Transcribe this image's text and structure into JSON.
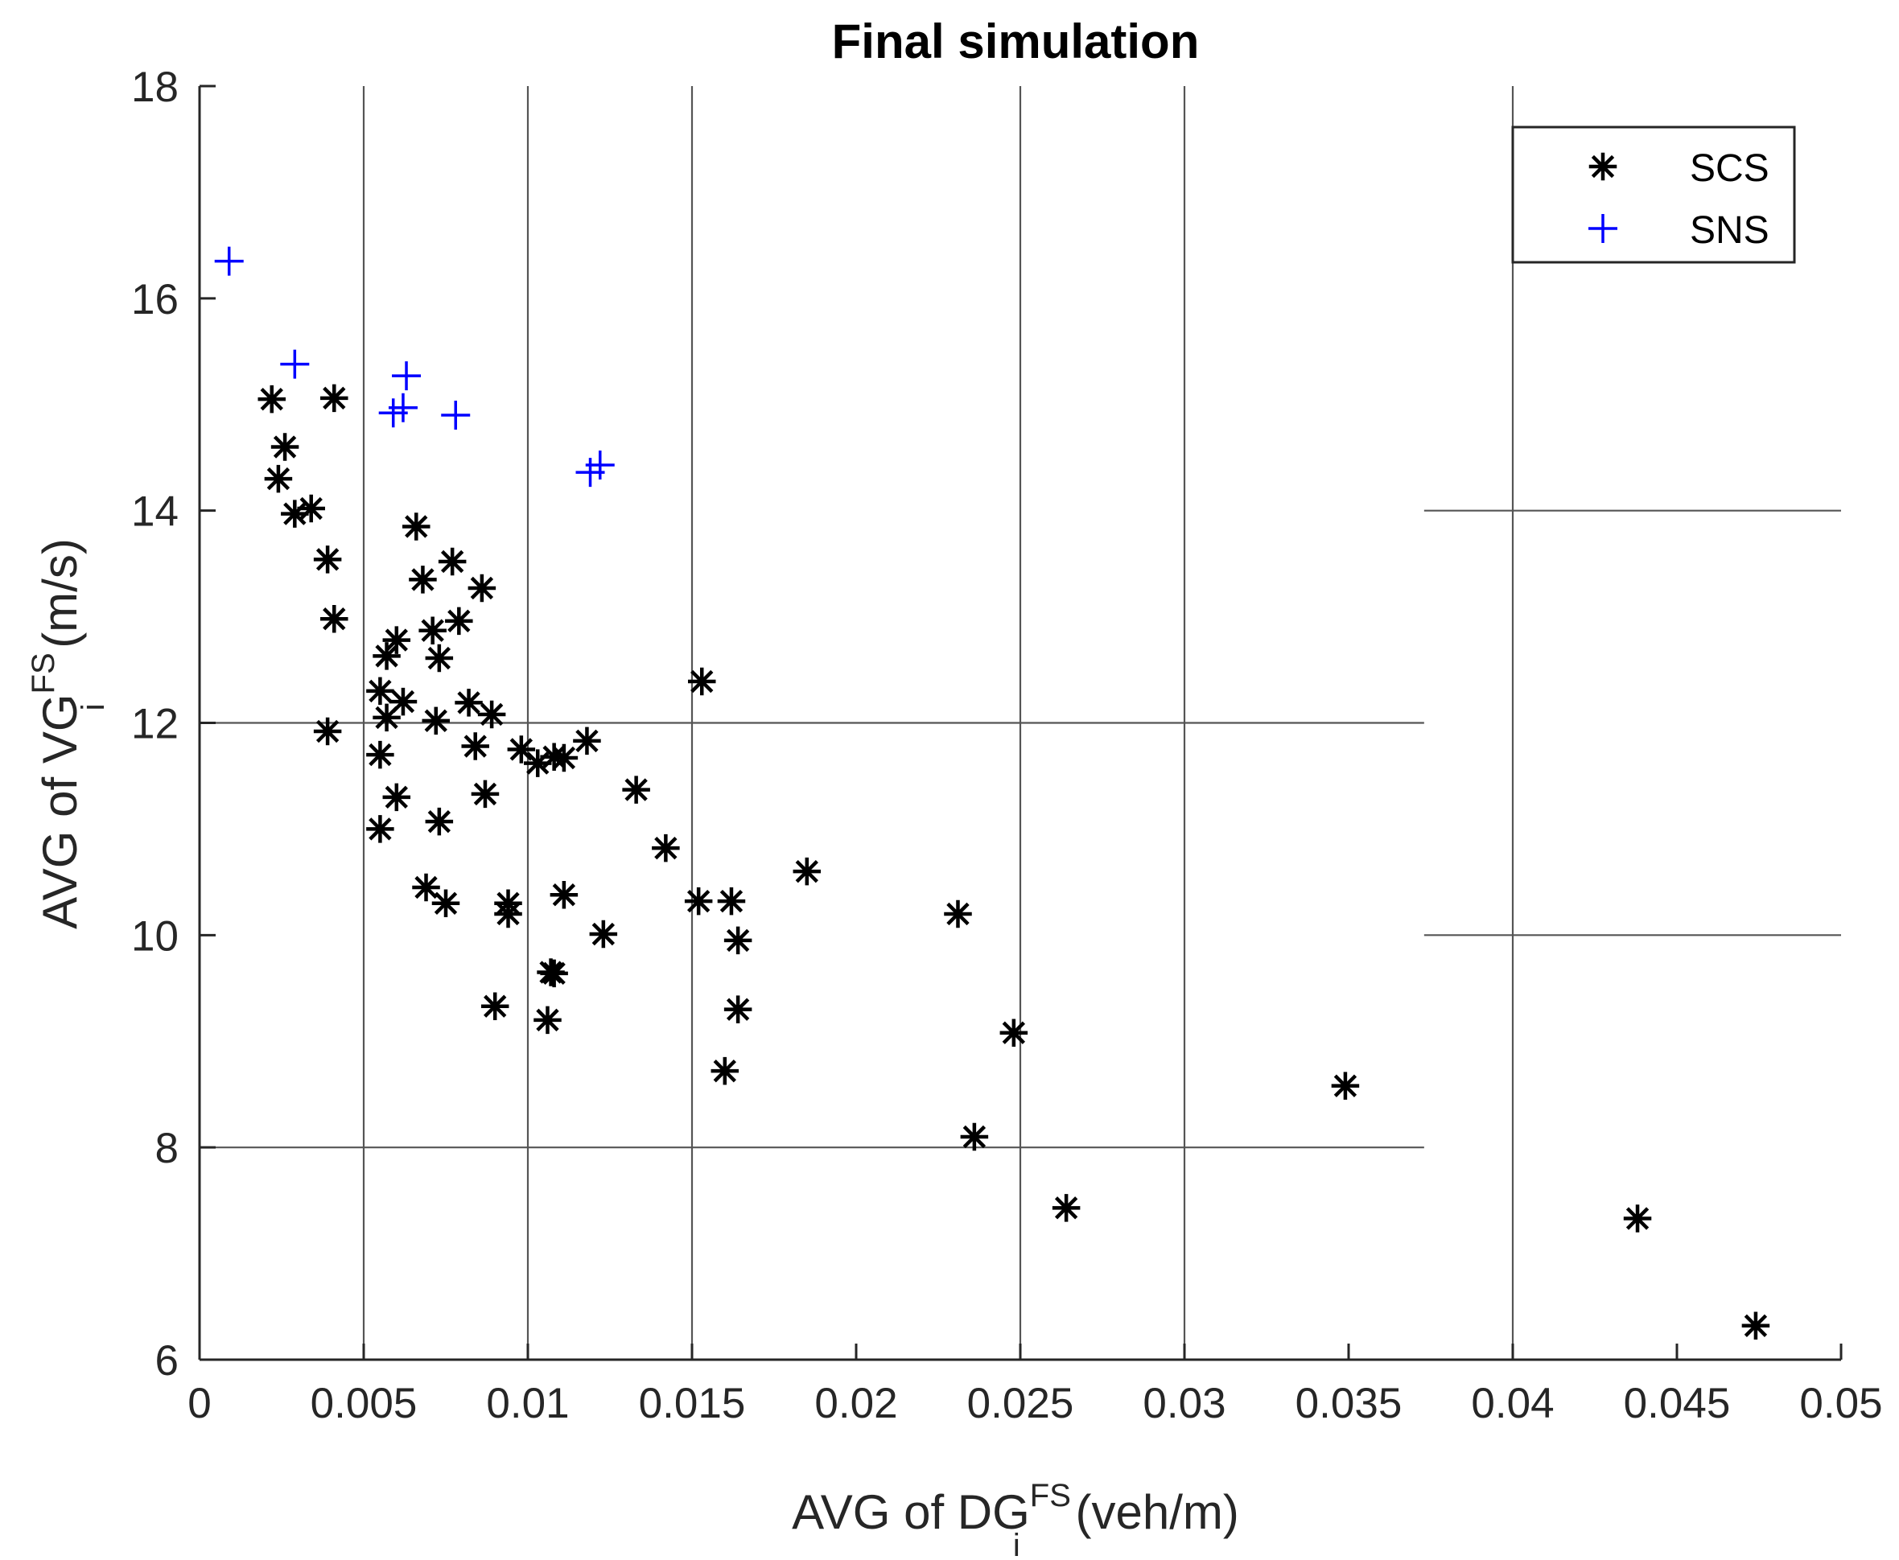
{
  "chart_data": {
    "type": "scatter",
    "title": "Final simulation",
    "xlabel": {
      "prefix": "AVG of DG",
      "sup": "FS",
      "sub": "i",
      "unit": " (veh/m)"
    },
    "ylabel": {
      "prefix": "AVG of VG",
      "sup": "FS",
      "sub": "i",
      "unit": " (m/s)"
    },
    "xlim": [
      0,
      0.05
    ],
    "ylim": [
      6,
      18
    ],
    "xticks": [
      0,
      0.005,
      0.01,
      0.015,
      0.02,
      0.025,
      0.03,
      0.035,
      0.04,
      0.045,
      0.05
    ],
    "xtick_labels": [
      "0",
      "0.005",
      "0.01",
      "0.015",
      "0.02",
      "0.025",
      "0.03",
      "0.035",
      "0.04",
      "0.045",
      "0.05"
    ],
    "yticks": [
      6,
      8,
      10,
      12,
      14,
      16,
      18
    ],
    "ytick_labels": [
      "6",
      "8",
      "10",
      "12",
      "14",
      "16",
      "18"
    ],
    "grid": {
      "vertical_x": [
        0.005,
        0.01,
        0.015,
        0.025,
        0.03,
        0.04
      ],
      "horizontal_full": [
        8,
        12
      ],
      "horizontal_right": [
        10,
        14
      ],
      "right_segment_start_x": 0.0373
    },
    "legend_position": "top-right",
    "series": [
      {
        "name": "SCS",
        "marker": "asterisk",
        "color": "#000000",
        "points": [
          [
            0.0022,
            15.05
          ],
          [
            0.0026,
            14.6
          ],
          [
            0.0024,
            14.3
          ],
          [
            0.0029,
            13.97
          ],
          [
            0.0034,
            14.02
          ],
          [
            0.0041,
            15.06
          ],
          [
            0.0039,
            13.54
          ],
          [
            0.0041,
            12.98
          ],
          [
            0.0039,
            11.92
          ],
          [
            0.0066,
            13.85
          ],
          [
            0.0068,
            13.35
          ],
          [
            0.0077,
            13.52
          ],
          [
            0.0086,
            13.27
          ],
          [
            0.0071,
            12.87
          ],
          [
            0.0079,
            12.96
          ],
          [
            0.006,
            12.78
          ],
          [
            0.0057,
            12.63
          ],
          [
            0.0073,
            12.61
          ],
          [
            0.0055,
            12.3
          ],
          [
            0.0062,
            12.2
          ],
          [
            0.0057,
            12.05
          ],
          [
            0.0072,
            12.02
          ],
          [
            0.0082,
            12.19
          ],
          [
            0.0089,
            12.08
          ],
          [
            0.0084,
            11.78
          ],
          [
            0.0055,
            11.7
          ],
          [
            0.006,
            11.3
          ],
          [
            0.0055,
            11.0
          ],
          [
            0.0073,
            11.07
          ],
          [
            0.0098,
            11.75
          ],
          [
            0.0103,
            11.62
          ],
          [
            0.0108,
            11.68
          ],
          [
            0.0111,
            11.67
          ],
          [
            0.0118,
            11.83
          ],
          [
            0.0087,
            11.33
          ],
          [
            0.0133,
            11.37
          ],
          [
            0.0142,
            10.82
          ],
          [
            0.0153,
            12.39
          ],
          [
            0.0069,
            10.45
          ],
          [
            0.0075,
            10.3
          ],
          [
            0.0094,
            10.3
          ],
          [
            0.0094,
            10.2
          ],
          [
            0.0111,
            10.38
          ],
          [
            0.0123,
            10.01
          ],
          [
            0.0152,
            10.32
          ],
          [
            0.0162,
            10.32
          ],
          [
            0.0164,
            9.95
          ],
          [
            0.0164,
            9.3
          ],
          [
            0.0185,
            10.6
          ],
          [
            0.0107,
            9.65
          ],
          [
            0.0108,
            9.64
          ],
          [
            0.009,
            9.33
          ],
          [
            0.0106,
            9.2
          ],
          [
            0.016,
            8.72
          ],
          [
            0.0231,
            10.2
          ],
          [
            0.0248,
            9.08
          ],
          [
            0.0236,
            8.1
          ],
          [
            0.0264,
            7.43
          ],
          [
            0.0349,
            8.58
          ],
          [
            0.0438,
            7.33
          ],
          [
            0.0474,
            6.32
          ]
        ]
      },
      {
        "name": "SNS",
        "marker": "plus",
        "color": "#0000ff",
        "points": [
          [
            0.0009,
            16.35
          ],
          [
            0.0029,
            15.38
          ],
          [
            0.0063,
            15.27
          ],
          [
            0.0059,
            14.92
          ],
          [
            0.0062,
            14.97
          ],
          [
            0.0078,
            14.9
          ],
          [
            0.0119,
            14.36
          ],
          [
            0.0122,
            14.43
          ]
        ]
      }
    ]
  }
}
